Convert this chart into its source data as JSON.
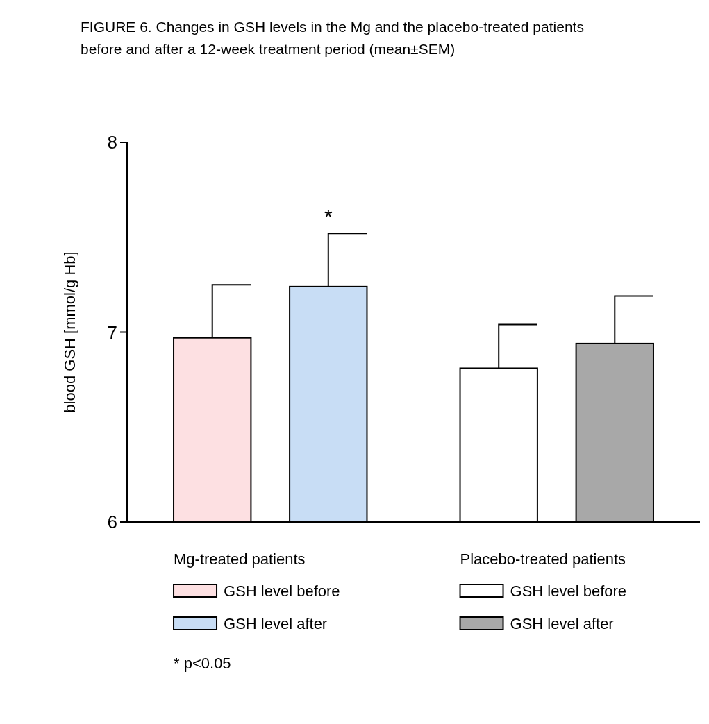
{
  "chart_data": {
    "type": "bar",
    "title": "FIGURE 6. Changes in GSH levels in the Mg and the placebo-treated patients before and after a 12-week treatment period (mean±SEM)",
    "ylabel": "blood GSH [mmol/g Hb]",
    "categories": [
      "Mg-treated patients",
      "Placebo-treated patients"
    ],
    "series": [
      {
        "name": "GSH level before",
        "color": "#fde0e2",
        "values": [
          6.97,
          null
        ],
        "errors": [
          [
            6.97,
            7.25
          ],
          null
        ]
      },
      {
        "name": "GSH level after",
        "color": "#c8ddf5",
        "values": [
          7.24,
          null
        ],
        "errors": [
          [
            7.24,
            7.52
          ],
          null
        ]
      },
      {
        "name": "GSH level before",
        "color": "#ffffff",
        "values": [
          null,
          6.81
        ],
        "errors": [
          null,
          [
            6.81,
            7.04
          ]
        ]
      },
      {
        "name": "GSH level after",
        "color": "#a8a8a8",
        "values": [
          null,
          6.94
        ],
        "errors": [
          null,
          [
            6.94,
            7.19
          ]
        ]
      }
    ],
    "ylim": [
      6,
      8
    ],
    "yticks": [
      6,
      7,
      8
    ],
    "grid": false,
    "legend": "bottom",
    "annotations": [
      {
        "text": "*",
        "y": 7.52
      },
      "* p<0.05"
    ]
  }
}
